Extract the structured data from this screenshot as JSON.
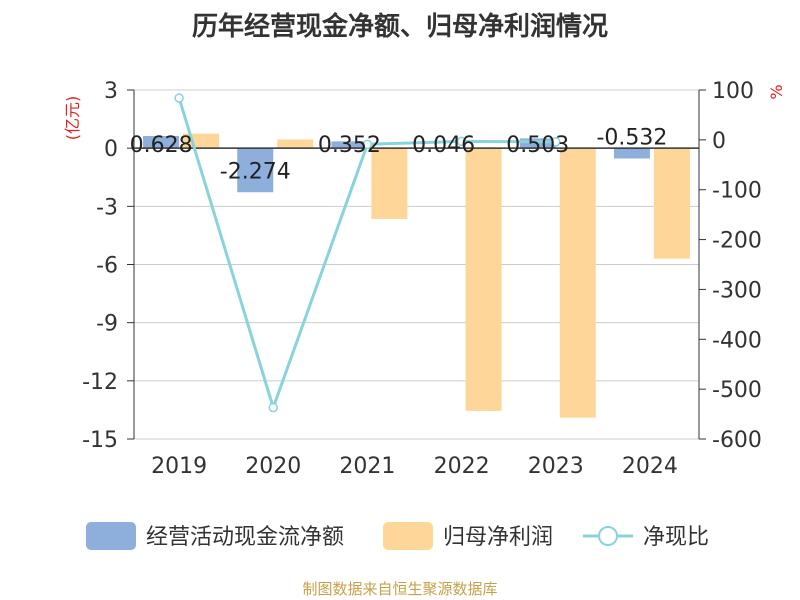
{
  "title": "历年经营现金净额、归母净利润情况",
  "footer": "制图数据来自恒生聚源数据库",
  "chart_data": {
    "type": "bar",
    "categories": [
      "2019",
      "2020",
      "2021",
      "2022",
      "2023",
      "2024"
    ],
    "left_axis": {
      "unit": "(亿元)",
      "ylim": [
        -15,
        3
      ],
      "ticks": [
        3,
        0,
        -3,
        -6,
        -9,
        -12,
        -15
      ]
    },
    "right_axis": {
      "unit": "%",
      "ylim": [
        -600,
        100
      ],
      "ticks": [
        100,
        0,
        -100,
        -200,
        -300,
        -400,
        -500,
        -600
      ]
    },
    "series": [
      {
        "name": "经营活动现金流净额",
        "type": "bar",
        "axis": "left",
        "color": "#8eaedc",
        "values": [
          0.628,
          -2.274,
          0.352,
          0.046,
          0.503,
          -0.532
        ],
        "labels": [
          "0.628",
          "-2.274",
          "0.352",
          "0.046",
          "0.503",
          "-0.532"
        ]
      },
      {
        "name": "归母净利润",
        "type": "bar",
        "axis": "left",
        "color": "#ffd699",
        "values": [
          0.75,
          0.45,
          -3.65,
          -13.55,
          -13.9,
          -5.7
        ]
      },
      {
        "name": "净现比",
        "type": "line",
        "axis": "right",
        "color": "#88d4da",
        "values": [
          84,
          -537,
          -9,
          -3,
          -4,
          null
        ]
      }
    ],
    "legend_position": "bottom",
    "grid": true
  }
}
